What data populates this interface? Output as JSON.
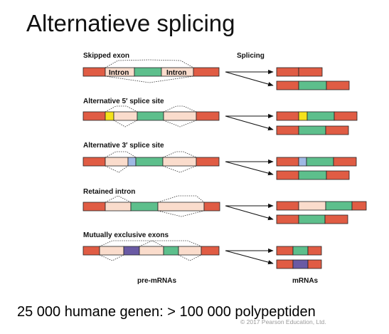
{
  "title": "Alternatieve splicing",
  "headers": {
    "splicing": "Splicing",
    "pre_mrna": "pre-mRNAs",
    "mrna": "mRNAs"
  },
  "colors": {
    "exon_red": "#e05c44",
    "exon_green": "#5dbf8c",
    "intron": "#fadccc",
    "yellow": "#f4e21b",
    "blue": "#9fb9e4",
    "purple": "#6a5aa4"
  },
  "rows": [
    {
      "label": "Skipped exon",
      "intron_label": "Intron"
    },
    {
      "label": "Alternative 5′ splice site"
    },
    {
      "label": "Alternative 3′ splice site"
    },
    {
      "label": "Retained intron"
    },
    {
      "label": "Mutually exclusive exons"
    }
  ],
  "footer": "25 000 humane genen: > 100 000 polypeptiden",
  "copyright": "© 2017 Pearson Education, Ltd."
}
